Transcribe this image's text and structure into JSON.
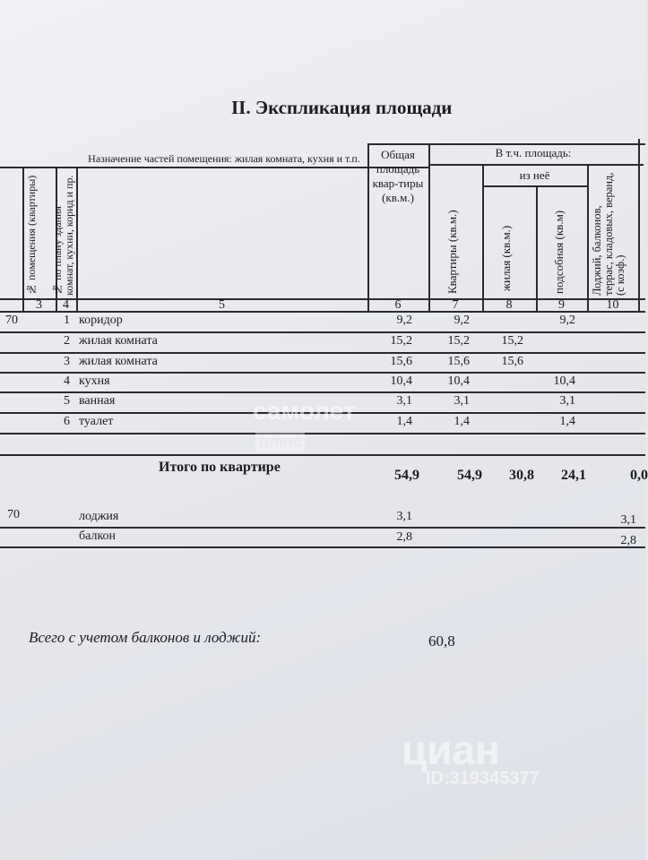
{
  "title": "II. Экспликация площади",
  "headers": {
    "room_no": "№ помещения (квартиры)",
    "plan_no": "№ по плану здания комнат, кухни, корид и пр.",
    "purpose": "Назначение частей помещения: жилая комната, кухня и т.п.",
    "total": "Общая площадь квар-тиры (кв.м.)",
    "incl": "В т.ч. площадь:",
    "apartment": "Квартиры (кв.м.)",
    "of_which": "из неё",
    "living": "жилая (кв.м.)",
    "auxiliary": "подсобная (кв.м)",
    "loggias": "Лоджий, балконов, террас, кладовых, веранд, (с коэф.)"
  },
  "col_numbers": [
    "3",
    "4",
    "5",
    "6",
    "7",
    "8",
    "9",
    "10"
  ],
  "rows": [
    {
      "room": "70",
      "no": "1",
      "name": "коридор",
      "total": "9,2",
      "apt": "9,2",
      "living": "",
      "aux": "9,2"
    },
    {
      "room": "",
      "no": "2",
      "name": "жилая комната",
      "total": "15,2",
      "apt": "15,2",
      "living": "15,2",
      "aux": ""
    },
    {
      "room": "",
      "no": "3",
      "name": "жилая комната",
      "total": "15,6",
      "apt": "15,6",
      "living": "15,6",
      "aux": ""
    },
    {
      "room": "",
      "no": "4",
      "name": "кухня",
      "total": "10,4",
      "apt": "10,4",
      "living": "",
      "aux": "10,4"
    },
    {
      "room": "",
      "no": "5",
      "name": "ванная",
      "total": "3,1",
      "apt": "3,1",
      "living": "",
      "aux": "3,1"
    },
    {
      "room": "",
      "no": "6",
      "name": "туалет",
      "total": "1,4",
      "apt": "1,4",
      "living": "",
      "aux": "1,4"
    }
  ],
  "summary": {
    "label": "Итого по квартире",
    "total": "54,9",
    "apt": "54,9",
    "living": "30,8",
    "aux": "24,1",
    "loggias": "0,0"
  },
  "extra_rows": [
    {
      "room": "70",
      "name": "лоджия",
      "total": "3,1",
      "loggias": "3,1"
    },
    {
      "room": "",
      "name": "балкон",
      "total": "2,8",
      "loggias": "2,8"
    }
  ],
  "grand_total": {
    "label": "Всего с учетом балконов и лоджий:",
    "value": "60,8"
  },
  "watermarks": {
    "samolet": "самолет",
    "plus": "плюс",
    "cian": "циан",
    "cian_id": "ID:319345377"
  }
}
